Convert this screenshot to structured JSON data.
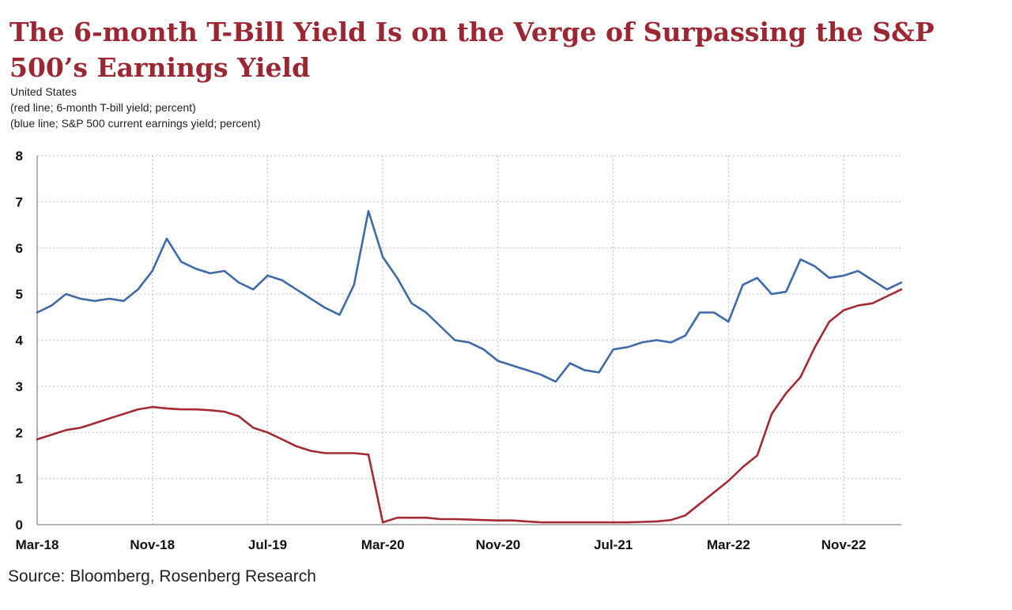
{
  "chart_data": {
    "type": "line",
    "title": "The 6-month T-Bill Yield Is on the Verge of Surpassing the S&P 500’s Earnings Yield",
    "subtitle_lines": [
      "United States",
      "(red line; 6-month T-bill yield; percent)",
      "(blue line; S&P 500 current earnings yield; percent)"
    ],
    "source": "Source: Bloomberg, Rosenberg Research",
    "x_tick_labels": [
      "Mar-18",
      "Nov-18",
      "Jul-19",
      "Mar-20",
      "Nov-20",
      "Jul-21",
      "Mar-22",
      "Nov-22"
    ],
    "x_tick_dates": [
      "2018-03",
      "2018-11",
      "2019-07",
      "2020-03",
      "2020-11",
      "2021-07",
      "2022-03",
      "2022-11"
    ],
    "xlim": [
      "2018-03",
      "2023-03"
    ],
    "ylim": [
      0,
      8
    ],
    "y_ticks": [
      0,
      1,
      2,
      3,
      4,
      5,
      6,
      7,
      8
    ],
    "grid": true,
    "colors": {
      "tbill": "#a52a33",
      "earnings": "#3d6aa8",
      "title": "#9c2632"
    },
    "series": [
      {
        "key": "earnings",
        "x": [
          "2018-03",
          "2018-04",
          "2018-05",
          "2018-06",
          "2018-07",
          "2018-08",
          "2018-09",
          "2018-10",
          "2018-11",
          "2018-12",
          "2019-01",
          "2019-02",
          "2019-03",
          "2019-04",
          "2019-05",
          "2019-06",
          "2019-07",
          "2019-08",
          "2019-09",
          "2019-10",
          "2019-11",
          "2019-12",
          "2020-01",
          "2020-02",
          "2020-03",
          "2020-04",
          "2020-05",
          "2020-06",
          "2020-07",
          "2020-08",
          "2020-09",
          "2020-10",
          "2020-11",
          "2020-12",
          "2021-01",
          "2021-02",
          "2021-03",
          "2021-04",
          "2021-05",
          "2021-06",
          "2021-07",
          "2021-08",
          "2021-09",
          "2021-10",
          "2021-11",
          "2021-12",
          "2022-01",
          "2022-02",
          "2022-03",
          "2022-04",
          "2022-05",
          "2022-06",
          "2022-07",
          "2022-08",
          "2022-09",
          "2022-10",
          "2022-11",
          "2022-12",
          "2023-01",
          "2023-02",
          "2023-03"
        ],
        "y": [
          4.6,
          4.75,
          5.0,
          4.9,
          4.85,
          4.9,
          4.85,
          5.1,
          5.5,
          6.2,
          5.7,
          5.55,
          5.45,
          5.5,
          5.25,
          5.1,
          5.4,
          5.3,
          5.1,
          4.9,
          4.7,
          4.55,
          5.2,
          6.8,
          5.8,
          5.35,
          4.8,
          4.6,
          4.3,
          4.0,
          3.95,
          3.8,
          3.55,
          3.45,
          3.35,
          3.25,
          3.1,
          3.5,
          3.35,
          3.3,
          3.8,
          3.85,
          3.95,
          4.0,
          3.95,
          4.1,
          4.6,
          4.6,
          4.4,
          5.2,
          5.35,
          5.0,
          5.05,
          5.75,
          5.6,
          5.35,
          5.4,
          5.5,
          5.3,
          5.1,
          5.25
        ]
      },
      {
        "key": "tbill",
        "x": [
          "2018-03",
          "2018-04",
          "2018-05",
          "2018-06",
          "2018-07",
          "2018-08",
          "2018-09",
          "2018-10",
          "2018-11",
          "2018-12",
          "2019-01",
          "2019-02",
          "2019-03",
          "2019-04",
          "2019-05",
          "2019-06",
          "2019-07",
          "2019-08",
          "2019-09",
          "2019-10",
          "2019-11",
          "2019-12",
          "2020-01",
          "2020-02",
          "2020-03",
          "2020-04",
          "2020-05",
          "2020-06",
          "2020-07",
          "2020-08",
          "2020-09",
          "2020-10",
          "2020-11",
          "2020-12",
          "2021-01",
          "2021-02",
          "2021-03",
          "2021-04",
          "2021-05",
          "2021-06",
          "2021-07",
          "2021-08",
          "2021-09",
          "2021-10",
          "2021-11",
          "2021-12",
          "2022-01",
          "2022-02",
          "2022-03",
          "2022-04",
          "2022-05",
          "2022-06",
          "2022-07",
          "2022-08",
          "2022-09",
          "2022-10",
          "2022-11",
          "2022-12",
          "2023-01",
          "2023-02",
          "2023-03"
        ],
        "y": [
          1.85,
          1.95,
          2.05,
          2.1,
          2.2,
          2.3,
          2.4,
          2.5,
          2.55,
          2.52,
          2.5,
          2.5,
          2.48,
          2.45,
          2.35,
          2.1,
          2.0,
          1.85,
          1.7,
          1.6,
          1.55,
          1.55,
          1.55,
          1.52,
          0.05,
          0.15,
          0.15,
          0.15,
          0.12,
          0.12,
          0.11,
          0.1,
          0.09,
          0.09,
          0.07,
          0.05,
          0.05,
          0.05,
          0.05,
          0.05,
          0.05,
          0.05,
          0.06,
          0.07,
          0.1,
          0.2,
          0.45,
          0.7,
          0.95,
          1.25,
          1.5,
          2.4,
          2.85,
          3.2,
          3.85,
          4.4,
          4.65,
          4.75,
          4.8,
          4.95,
          5.1
        ]
      }
    ]
  }
}
